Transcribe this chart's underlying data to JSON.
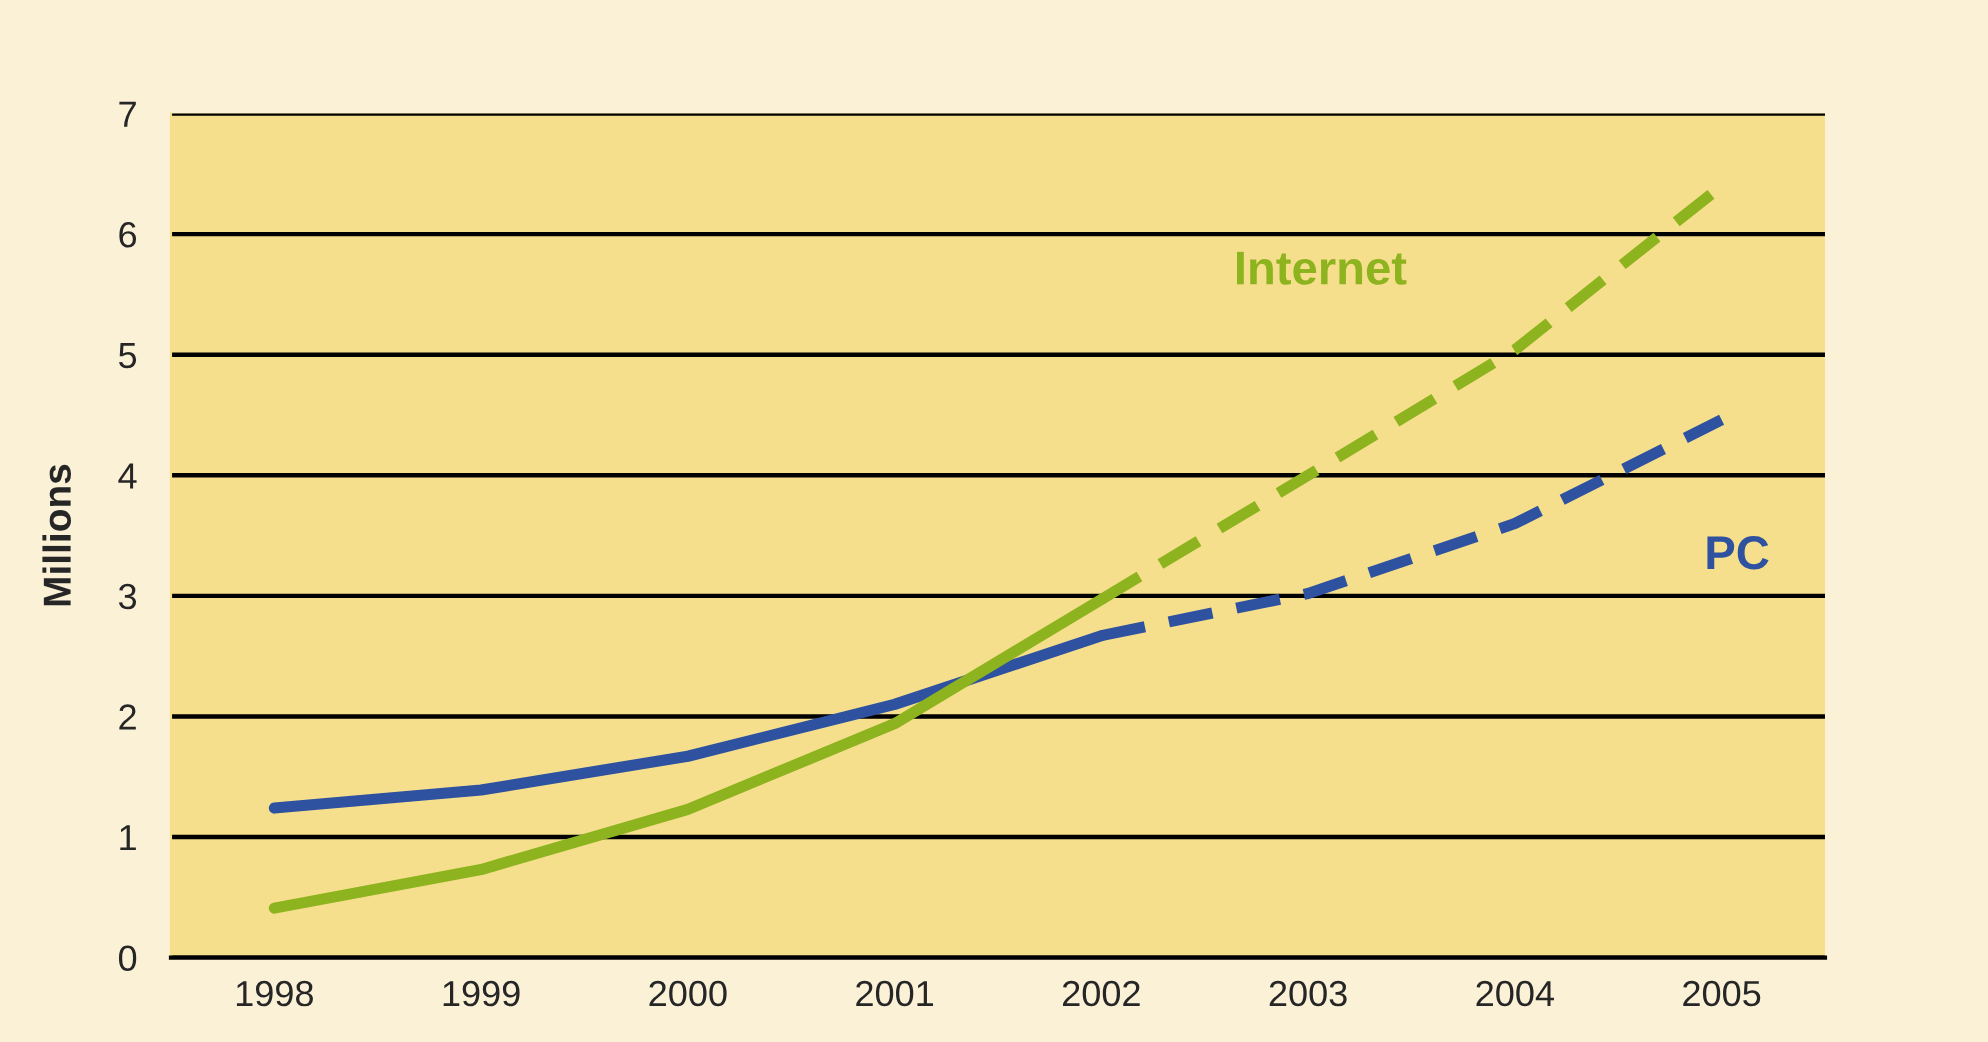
{
  "chart_data": {
    "type": "line",
    "ylabel": "Millions",
    "categories": [
      "1998",
      "1999",
      "2000",
      "2001",
      "2002",
      "2003",
      "2004",
      "2005"
    ],
    "series": [
      {
        "color": "#2e52a0",
        "line_style": "solid",
        "values": [
          1.24,
          1.39,
          1.67,
          2.1,
          2.67,
          null,
          null,
          null
        ]
      },
      {
        "name": "PC",
        "color": "#2e52a0",
        "line_style": "dashed",
        "values": [
          null,
          null,
          null,
          null,
          2.67,
          3.02,
          3.6,
          4.46
        ]
      },
      {
        "color": "#8db31e",
        "line_style": "solid",
        "values": [
          0.41,
          0.73,
          1.23,
          1.94,
          2.97,
          null,
          null,
          null
        ]
      },
      {
        "name": "Internet",
        "color": "#8db31e",
        "line_style": "dashed",
        "values": [
          null,
          null,
          null,
          null,
          2.97,
          4.0,
          5.04,
          6.4
        ]
      }
    ],
    "ylim": [
      0,
      7
    ],
    "yticks": [
      0,
      1,
      2,
      3,
      4,
      5,
      6,
      7
    ],
    "grid": "y",
    "legend": false,
    "marker": "none"
  }
}
